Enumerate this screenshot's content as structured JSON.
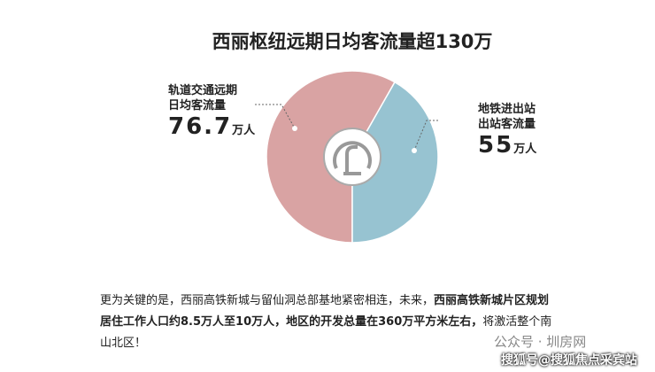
{
  "chart_data": {
    "type": "pie",
    "title": "西丽枢纽远期日均客流量超130万",
    "categories": [
      "轨道交通远期日均客流量",
      "地铁进出站出站客流量"
    ],
    "values": [
      76.7,
      55
    ],
    "unit": "万人",
    "colors": [
      "#d9a3a3",
      "#97c3d1"
    ]
  },
  "text": {
    "paragraph": [
      "更为关键的是，西丽高铁新城与留仙洞总部基地紧密相连，未来，",
      "西丽高铁新城片区规划居住工作人口约8.5万人至10万人，地区的开发总量在360万平方米左右，",
      "将激活整个南山北区！"
    ],
    "watermark": "公众号 · 圳房网",
    "source": "搜狐号@搜狐焦点采宾站"
  }
}
